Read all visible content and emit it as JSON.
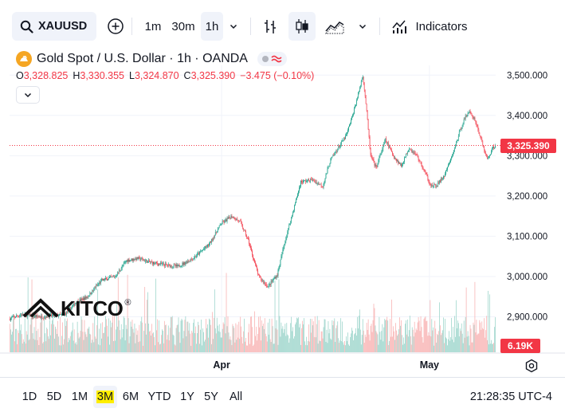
{
  "toolbar": {
    "symbol": "XAUUSD",
    "intervals": [
      "1m",
      "30m",
      "1h"
    ],
    "active_interval": "1h",
    "indicators_label": "Indicators"
  },
  "legend": {
    "title": "Gold Spot / U.S. Dollar · 1h · OANDA",
    "open_key": "O",
    "open": "3,328.825",
    "high_key": "H",
    "high": "3,330.355",
    "low_key": "L",
    "low": "3,324.870",
    "close_key": "C",
    "close": "3,325.390",
    "change": "−3.475 (−0.10%)"
  },
  "price_scale": {
    "last_price_label": "3,325.390",
    "volume_label": "6.19K"
  },
  "watermark": {
    "text": "KITCO",
    "mark": "®"
  },
  "ranges": [
    "1D",
    "5D",
    "1M",
    "3M",
    "6M",
    "YTD",
    "1Y",
    "5Y",
    "All"
  ],
  "active_range": "3M",
  "clock": "21:28:35 UTC-4",
  "colors": {
    "up": "#089981",
    "down": "#f23645",
    "volume_up": "#8fcfc4",
    "volume_down": "#f7a9a9",
    "grid": "#f0f3fa"
  },
  "chart_data": {
    "type": "candlestick",
    "symbol": "XAUUSD",
    "interval": "1h",
    "ylim": [
      2860,
      3530
    ],
    "y_ticks": [
      2900,
      3000,
      3100,
      3200,
      3300,
      3400,
      3500
    ],
    "y_tick_labels": [
      "2,900.000",
      "3,000.000",
      "3,100.000",
      "3,200.000",
      "3,300.000",
      "3,400.000",
      "3,500.000"
    ],
    "x_ticks": [
      {
        "label": "Apr",
        "index": 270
      },
      {
        "label": "May",
        "index": 535
      }
    ],
    "last_price": 3325.39,
    "bars": 620,
    "close_path": [
      [
        0,
        2895
      ],
      [
        15,
        2905
      ],
      [
        40,
        2900
      ],
      [
        70,
        2905
      ],
      [
        85,
        2935
      ],
      [
        100,
        2950
      ],
      [
        118,
        2990
      ],
      [
        135,
        3000
      ],
      [
        150,
        3040
      ],
      [
        165,
        3045
      ],
      [
        180,
        3035
      ],
      [
        195,
        3030
      ],
      [
        215,
        3025
      ],
      [
        235,
        3045
      ],
      [
        255,
        3080
      ],
      [
        270,
        3130
      ],
      [
        284,
        3150
      ],
      [
        295,
        3135
      ],
      [
        305,
        3090
      ],
      [
        318,
        3000
      ],
      [
        330,
        2975
      ],
      [
        342,
        3005
      ],
      [
        352,
        3090
      ],
      [
        362,
        3160
      ],
      [
        372,
        3235
      ],
      [
        386,
        3240
      ],
      [
        400,
        3225
      ],
      [
        410,
        3290
      ],
      [
        420,
        3320
      ],
      [
        430,
        3350
      ],
      [
        438,
        3400
      ],
      [
        446,
        3460
      ],
      [
        451,
        3500
      ],
      [
        455,
        3430
      ],
      [
        461,
        3300
      ],
      [
        468,
        3270
      ],
      [
        480,
        3340
      ],
      [
        490,
        3300
      ],
      [
        500,
        3275
      ],
      [
        510,
        3320
      ],
      [
        520,
        3300
      ],
      [
        530,
        3260
      ],
      [
        538,
        3225
      ],
      [
        545,
        3225
      ],
      [
        555,
        3250
      ],
      [
        565,
        3300
      ],
      [
        578,
        3380
      ],
      [
        586,
        3410
      ],
      [
        594,
        3390
      ],
      [
        602,
        3340
      ],
      [
        610,
        3290
      ],
      [
        617,
        3320
      ],
      [
        620,
        3325.39
      ]
    ]
  }
}
